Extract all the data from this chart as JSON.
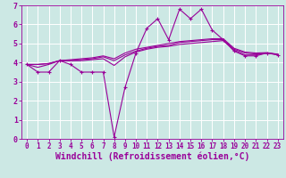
{
  "xlabel": "Windchill (Refroidissement éolien,°C)",
  "xlim": [
    -0.5,
    23.5
  ],
  "ylim": [
    0,
    7
  ],
  "bg_color": "#cce8e4",
  "line_color": "#990099",
  "grid_color": "#ffffff",
  "line_main": [
    3.9,
    3.5,
    3.5,
    4.1,
    3.9,
    3.5,
    3.5,
    3.5,
    0.1,
    2.7,
    4.5,
    5.8,
    6.3,
    5.2,
    6.8,
    6.3,
    6.8,
    5.7,
    5.2,
    4.6,
    4.35,
    4.35,
    4.5,
    4.4
  ],
  "lines_smooth": [
    [
      3.9,
      3.75,
      3.9,
      4.1,
      4.1,
      4.1,
      4.15,
      4.2,
      3.85,
      4.3,
      4.55,
      4.7,
      4.8,
      4.85,
      4.95,
      5.0,
      5.05,
      5.1,
      5.15,
      4.65,
      4.4,
      4.4,
      4.5,
      4.42
    ],
    [
      3.9,
      3.9,
      3.95,
      4.1,
      4.1,
      4.15,
      4.2,
      4.3,
      4.1,
      4.4,
      4.6,
      4.75,
      4.85,
      4.9,
      5.05,
      5.1,
      5.15,
      5.2,
      5.2,
      4.7,
      4.5,
      4.45,
      4.5,
      4.43
    ],
    [
      3.9,
      3.9,
      3.95,
      4.1,
      4.15,
      4.2,
      4.25,
      4.35,
      4.2,
      4.5,
      4.7,
      4.8,
      4.9,
      5.0,
      5.1,
      5.15,
      5.2,
      5.25,
      5.25,
      4.75,
      4.55,
      4.5,
      4.52,
      4.44
    ]
  ],
  "xticks": [
    0,
    1,
    2,
    3,
    4,
    5,
    6,
    7,
    8,
    9,
    10,
    11,
    12,
    13,
    14,
    15,
    16,
    17,
    18,
    19,
    20,
    21,
    22,
    23
  ],
  "yticks": [
    0,
    1,
    2,
    3,
    4,
    5,
    6,
    7
  ],
  "tick_fontsize": 5.5,
  "label_fontsize": 7
}
